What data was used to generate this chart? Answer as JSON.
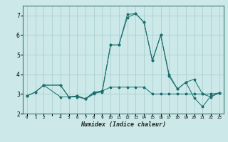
{
  "xlabel": "Humidex (Indice chaleur)",
  "bg_color": "#cce8e8",
  "grid_color": "#aad0d0",
  "line_color": "#1a6e6e",
  "x_ticks": [
    0,
    1,
    2,
    4,
    5,
    6,
    7,
    8,
    9,
    10,
    11,
    12,
    13,
    14,
    15,
    16,
    17,
    18,
    19,
    20,
    21,
    22,
    23
  ],
  "series1": [
    [
      0,
      2.9
    ],
    [
      1,
      3.1
    ],
    [
      2,
      3.45
    ],
    [
      4,
      3.45
    ],
    [
      5,
      2.85
    ],
    [
      6,
      2.9
    ],
    [
      7,
      2.75
    ],
    [
      8,
      3.0
    ],
    [
      9,
      3.15
    ],
    [
      10,
      3.35
    ],
    [
      11,
      3.35
    ],
    [
      12,
      3.35
    ],
    [
      13,
      3.35
    ],
    [
      14,
      3.35
    ],
    [
      15,
      3.0
    ],
    [
      16,
      3.0
    ],
    [
      17,
      3.0
    ],
    [
      18,
      3.0
    ],
    [
      19,
      3.0
    ],
    [
      20,
      3.0
    ],
    [
      21,
      3.0
    ],
    [
      22,
      3.0
    ],
    [
      23,
      3.05
    ]
  ],
  "series2": [
    [
      0,
      2.9
    ],
    [
      1,
      3.1
    ],
    [
      2,
      3.45
    ],
    [
      4,
      2.85
    ],
    [
      5,
      2.85
    ],
    [
      6,
      2.9
    ],
    [
      7,
      2.75
    ],
    [
      8,
      3.05
    ],
    [
      9,
      3.1
    ],
    [
      10,
      5.5
    ],
    [
      11,
      5.5
    ],
    [
      12,
      6.9
    ],
    [
      13,
      7.1
    ],
    [
      14,
      6.65
    ],
    [
      15,
      4.7
    ],
    [
      16,
      6.0
    ],
    [
      17,
      3.9
    ],
    [
      18,
      3.25
    ],
    [
      19,
      3.6
    ],
    [
      20,
      3.75
    ],
    [
      21,
      3.0
    ],
    [
      22,
      2.85
    ],
    [
      23,
      3.05
    ]
  ],
  "series3": [
    [
      2,
      3.45
    ],
    [
      4,
      3.45
    ],
    [
      5,
      2.85
    ],
    [
      6,
      2.85
    ],
    [
      7,
      2.75
    ],
    [
      8,
      3.1
    ],
    [
      9,
      3.15
    ],
    [
      10,
      5.5
    ],
    [
      11,
      5.5
    ],
    [
      12,
      7.05
    ],
    [
      13,
      7.1
    ],
    [
      14,
      6.65
    ],
    [
      15,
      4.7
    ],
    [
      16,
      6.0
    ],
    [
      17,
      4.0
    ],
    [
      18,
      3.25
    ],
    [
      19,
      3.6
    ],
    [
      20,
      2.8
    ],
    [
      21,
      2.35
    ],
    [
      22,
      2.9
    ],
    [
      23,
      3.05
    ]
  ],
  "ylim": [
    2.0,
    7.5
  ],
  "yticks": [
    2,
    3,
    4,
    5,
    6,
    7
  ],
  "xlim": [
    -0.5,
    23.5
  ]
}
